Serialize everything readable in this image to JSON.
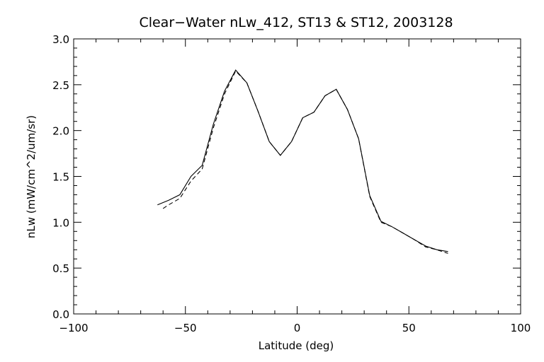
{
  "chart_data": {
    "type": "line",
    "title": "Clear−Water nLw_412, ST13 & ST12, 2003128",
    "xlabel": "Latitude (deg)",
    "ylabel": "nLw (mW/cm^2/um/sr)",
    "xlim": [
      -100,
      100
    ],
    "ylim": [
      0.0,
      3.0
    ],
    "xticks": [
      -100,
      -50,
      0,
      50,
      100
    ],
    "xtick_labels": [
      "−100",
      "−50",
      "0",
      "50",
      "100"
    ],
    "yticks": [
      0.0,
      0.5,
      1.0,
      1.5,
      2.0,
      2.5,
      3.0
    ],
    "ytick_labels": [
      "0.0",
      "0.5",
      "1.0",
      "1.5",
      "2.0",
      "2.5",
      "3.0"
    ],
    "grid": false,
    "series": [
      {
        "style": "solid",
        "x": [
          -62.5,
          -57.5,
          -52.5,
          -47.5,
          -42.5,
          -37.5,
          -32.5,
          -27.5,
          -22.5,
          -17.5,
          -12.5,
          -7.5,
          -2.5,
          2.5,
          7.5,
          12.5,
          17.5,
          22.5,
          27.5,
          32.5,
          37.5,
          42.5,
          47.5,
          52.5,
          57.5,
          62.5,
          67.5
        ],
        "y": [
          1.19,
          1.24,
          1.3,
          1.5,
          1.62,
          2.07,
          2.43,
          2.66,
          2.52,
          2.21,
          1.88,
          1.73,
          1.88,
          2.14,
          2.2,
          2.38,
          2.45,
          2.23,
          1.91,
          1.29,
          1.01,
          0.95,
          0.88,
          0.81,
          0.74,
          0.7,
          0.68
        ]
      },
      {
        "style": "dashed",
        "x": [
          -60.0,
          -57.5,
          -52.5,
          -47.5,
          -42.5,
          -37.5,
          -32.5,
          -27.5,
          -22.5,
          -17.5,
          -12.5,
          -7.5,
          -2.5,
          2.5,
          7.5,
          12.5,
          17.5,
          22.5,
          27.5,
          32.5,
          37.5,
          42.5,
          47.5,
          52.5,
          57.5,
          62.5,
          67.5
        ],
        "y": [
          1.15,
          1.19,
          1.26,
          1.45,
          1.58,
          2.03,
          2.4,
          2.65,
          2.52,
          2.21,
          1.88,
          1.73,
          1.88,
          2.14,
          2.2,
          2.38,
          2.45,
          2.23,
          1.91,
          1.28,
          1.0,
          0.95,
          0.88,
          0.81,
          0.73,
          0.7,
          0.66
        ]
      }
    ]
  }
}
